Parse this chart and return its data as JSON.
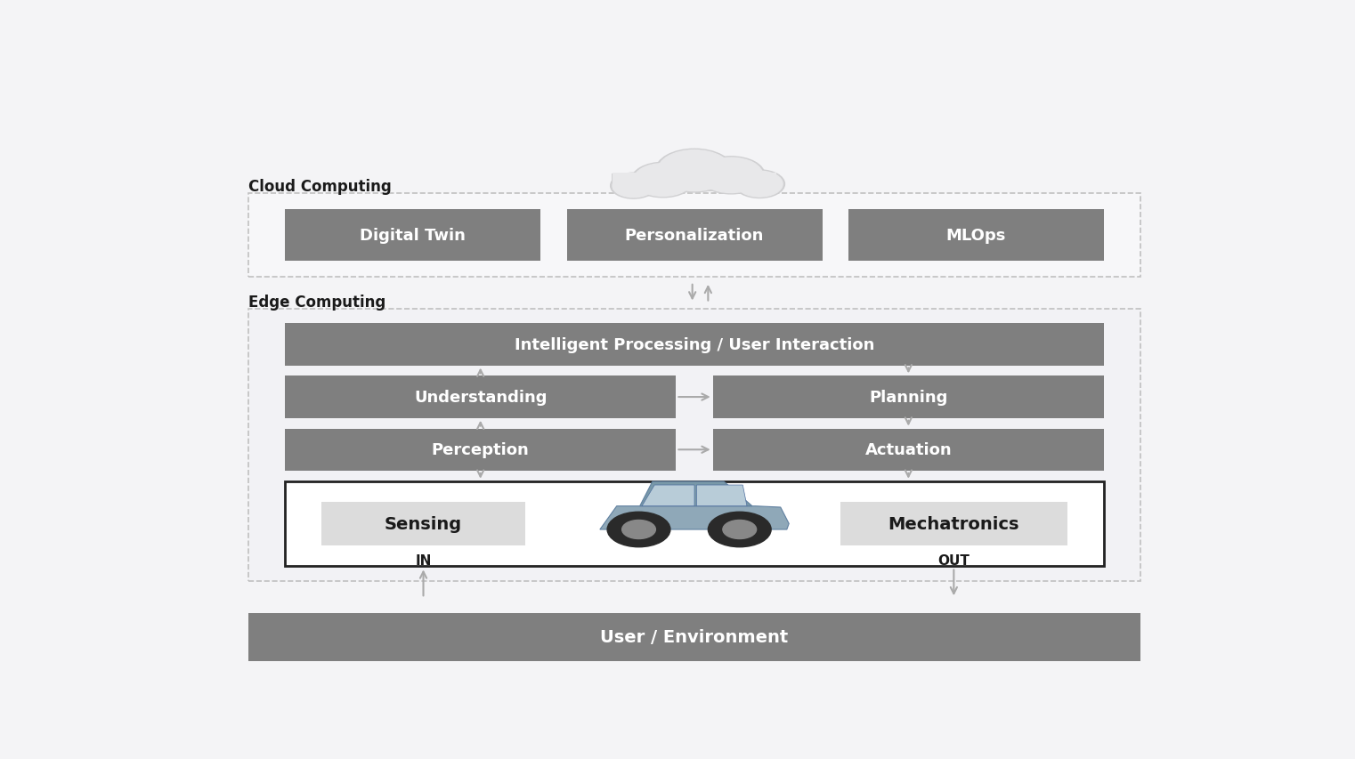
{
  "fig_bg": "#f4f4f6",
  "box_color_dark": "#7f7f7f",
  "box_color_light": "#dcdcdc",
  "box_color_white": "#ffffff",
  "text_color_white": "#ffffff",
  "text_color_dark": "#1a1a1a",
  "arrow_color": "#aaaaaa",
  "border_dashed": "#c0c0c0",
  "border_solid": "#222222",
  "cloud_color": "#e8e8ea",
  "cloud_outline": "#d0d0d2",
  "label_cloud": "Cloud Computing",
  "label_edge": "Edge Computing",
  "cloud_boxes": [
    "Digital Twin",
    "Personalization",
    "MLOps"
  ],
  "label_ip": "Intelligent Processing / User Interaction",
  "label_understanding": "Understanding",
  "label_planning": "Planning",
  "label_perception": "Perception",
  "label_actuation": "Actuation",
  "label_sensing": "Sensing",
  "label_mechatronics": "Mechatronics",
  "label_in": "IN",
  "label_out": "OUT",
  "label_user_env": "User / Environment",
  "car_body_color": "#8fa8b8",
  "car_roof_color": "#7898a8",
  "car_wheel_color": "#2a2a2a",
  "car_window_color": "#b8ccd8"
}
